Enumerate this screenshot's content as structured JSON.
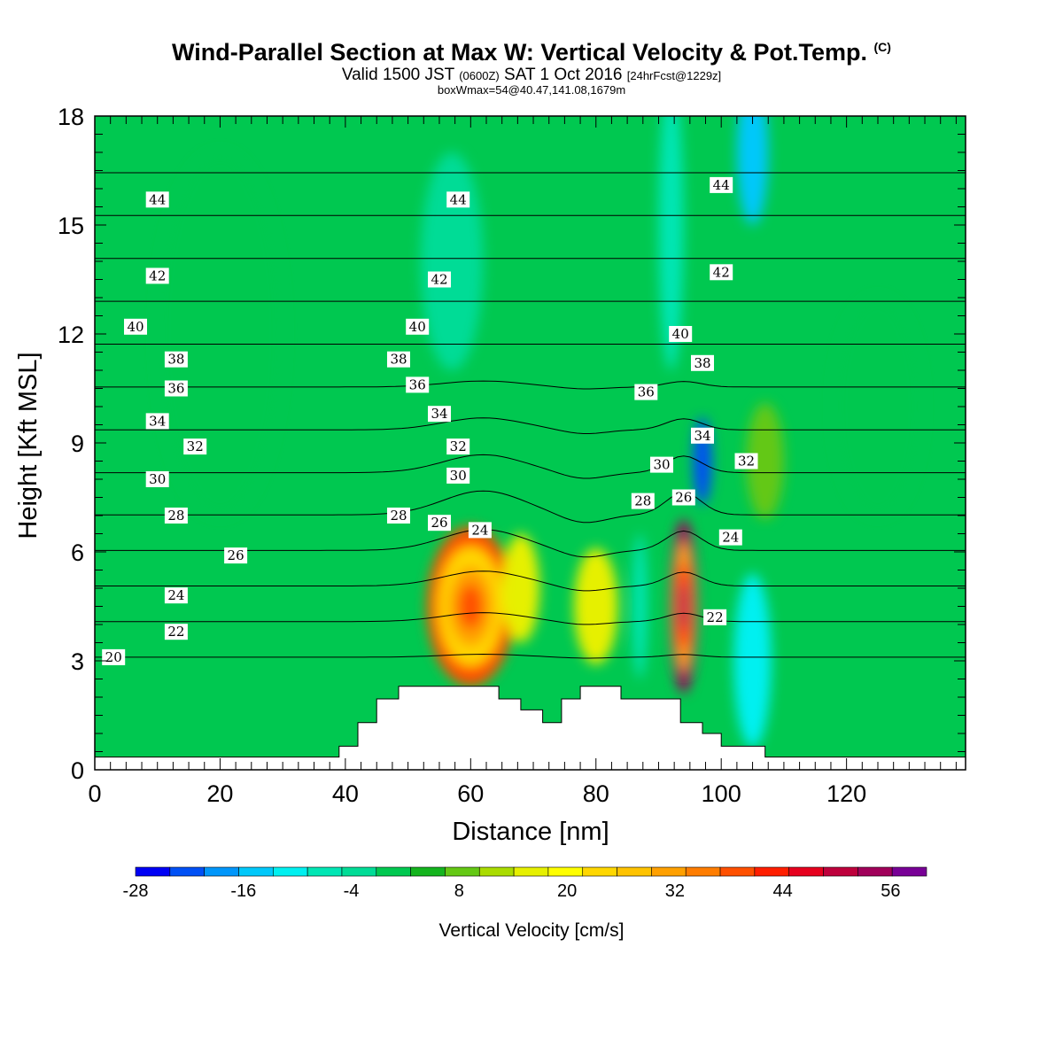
{
  "header": {
    "title": "Wind-Parallel Section at Max W: Vertical Velocity & Pot.Temp.",
    "title_mark": "(C)",
    "valid_prefix": "Valid 1500 JST",
    "valid_utc": "(0600Z)",
    "valid_date": "SAT 1 Oct 2016",
    "forecast": "[24hrFcst@1229z]",
    "box_info": "boxWmax=54@40.47,141.08,1679m"
  },
  "chart_data": {
    "type": "heatmap",
    "xlabel": "Distance [nm]",
    "ylabel": "Height [Kft MSL]",
    "xlim": [
      0,
      139
    ],
    "ylim": [
      0,
      18
    ],
    "x_ticks": [
      0,
      20,
      40,
      60,
      80,
      100,
      120
    ],
    "y_ticks": [
      0,
      3,
      6,
      9,
      12,
      15,
      18
    ],
    "colorbar": {
      "title": "Vertical Velocity [cm/s]",
      "levels": [
        -28,
        -24,
        -20,
        -16,
        -12,
        -8,
        -4,
        0,
        4,
        8,
        12,
        16,
        20,
        24,
        28,
        32,
        36,
        40,
        44,
        48,
        52,
        56,
        60
      ],
      "tick_labels": [
        "-28",
        "-16",
        "-4",
        "8",
        "20",
        "32",
        "44",
        "56"
      ],
      "colors": [
        "#0000f5",
        "#0050f5",
        "#0096fa",
        "#00c8fa",
        "#00f0f0",
        "#00e6b4",
        "#00dc96",
        "#00c850",
        "#14b41e",
        "#64c814",
        "#aadc00",
        "#e6f000",
        "#ffff00",
        "#ffd700",
        "#ffc300",
        "#ffa000",
        "#ff7d00",
        "#ff5000",
        "#ff1e00",
        "#e6001e",
        "#be003c",
        "#a0005a",
        "#780096"
      ]
    },
    "vertical_velocity_features": [
      {
        "x": 60,
        "z": 4.5,
        "w": 40
      },
      {
        "x": 68,
        "z": 5.0,
        "w": 18
      },
      {
        "x": 80,
        "z": 4.5,
        "w": 16
      },
      {
        "x": 94,
        "z": 4.5,
        "w": 56
      },
      {
        "x": 87,
        "z": 4.5,
        "w": -8
      },
      {
        "x": 105,
        "z": 3.0,
        "w": -12
      },
      {
        "x": 57,
        "z": 14,
        "w": -4
      },
      {
        "x": 92,
        "z": 15,
        "w": -8
      },
      {
        "x": 105,
        "z": 17,
        "w": -16
      },
      {
        "x": 97,
        "z": 8.5,
        "w": -24
      },
      {
        "x": 107,
        "z": 8.5,
        "w": 8
      },
      {
        "x": 20,
        "z": 12,
        "w": 2
      },
      {
        "x": 125,
        "z": 10,
        "w": 2
      }
    ],
    "theta_contours": [
      20,
      22,
      24,
      26,
      28,
      30,
      32,
      34,
      36,
      38,
      40,
      42,
      44
    ],
    "theta_labels": [
      {
        "text": "44",
        "x": 10,
        "z": 15.7
      },
      {
        "text": "44",
        "x": 58,
        "z": 15.7
      },
      {
        "text": "44",
        "x": 100,
        "z": 16.1
      },
      {
        "text": "42",
        "x": 10,
        "z": 13.6
      },
      {
        "text": "42",
        "x": 55,
        "z": 13.5
      },
      {
        "text": "42",
        "x": 100,
        "z": 13.7
      },
      {
        "text": "40",
        "x": 6.5,
        "z": 12.2
      },
      {
        "text": "40",
        "x": 51.5,
        "z": 12.2
      },
      {
        "text": "40",
        "x": 93.5,
        "z": 12.0
      },
      {
        "text": "38",
        "x": 13,
        "z": 11.3
      },
      {
        "text": "38",
        "x": 48.5,
        "z": 11.3
      },
      {
        "text": "38",
        "x": 97,
        "z": 11.2
      },
      {
        "text": "36",
        "x": 13,
        "z": 10.5
      },
      {
        "text": "36",
        "x": 51.5,
        "z": 10.6
      },
      {
        "text": "36",
        "x": 88,
        "z": 10.4
      },
      {
        "text": "34",
        "x": 10,
        "z": 9.6
      },
      {
        "text": "34",
        "x": 55,
        "z": 9.8
      },
      {
        "text": "34",
        "x": 97,
        "z": 9.2
      },
      {
        "text": "32",
        "x": 16,
        "z": 8.9
      },
      {
        "text": "32",
        "x": 58,
        "z": 8.9
      },
      {
        "text": "32",
        "x": 104,
        "z": 8.5
      },
      {
        "text": "30",
        "x": 10,
        "z": 8.0
      },
      {
        "text": "30",
        "x": 58,
        "z": 8.1
      },
      {
        "text": "30",
        "x": 90.5,
        "z": 8.4
      },
      {
        "text": "28",
        "x": 13,
        "z": 7.0
      },
      {
        "text": "28",
        "x": 48.5,
        "z": 7.0
      },
      {
        "text": "28",
        "x": 87.5,
        "z": 7.4
      },
      {
        "text": "26",
        "x": 22.5,
        "z": 5.9
      },
      {
        "text": "26",
        "x": 55,
        "z": 6.8
      },
      {
        "text": "26",
        "x": 94,
        "z": 7.5
      },
      {
        "text": "24",
        "x": 13,
        "z": 4.8
      },
      {
        "text": "24",
        "x": 61.5,
        "z": 6.6
      },
      {
        "text": "24",
        "x": 101.5,
        "z": 6.4
      },
      {
        "text": "22",
        "x": 13,
        "z": 3.8
      },
      {
        "text": "22",
        "x": 99,
        "z": 4.2
      },
      {
        "text": "20",
        "x": 3,
        "z": 3.1
      }
    ],
    "terrain": [
      [
        0,
        0.35
      ],
      [
        39,
        0.35
      ],
      [
        39,
        0.65
      ],
      [
        42,
        0.65
      ],
      [
        42,
        1.3
      ],
      [
        45,
        1.3
      ],
      [
        45,
        1.95
      ],
      [
        48.5,
        1.95
      ],
      [
        48.5,
        2.3
      ],
      [
        64.5,
        2.3
      ],
      [
        64.5,
        1.95
      ],
      [
        68,
        1.95
      ],
      [
        68,
        1.65
      ],
      [
        71.5,
        1.65
      ],
      [
        71.5,
        1.3
      ],
      [
        74.5,
        1.3
      ],
      [
        74.5,
        1.95
      ],
      [
        77.5,
        1.95
      ],
      [
        77.5,
        2.3
      ],
      [
        84,
        2.3
      ],
      [
        84,
        1.95
      ],
      [
        93.5,
        1.95
      ],
      [
        93.5,
        1.3
      ],
      [
        97,
        1.3
      ],
      [
        97,
        1.0
      ],
      [
        100,
        1.0
      ],
      [
        100,
        0.65
      ],
      [
        107,
        0.65
      ],
      [
        107,
        0.35
      ],
      [
        139,
        0.35
      ]
    ]
  }
}
